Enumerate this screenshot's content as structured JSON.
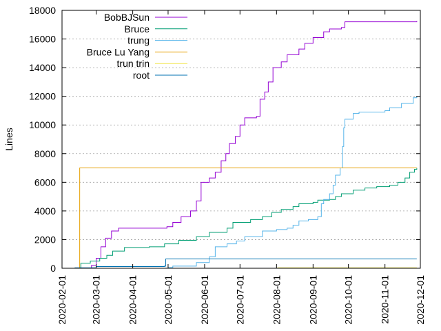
{
  "chart_data": {
    "type": "line",
    "title": "",
    "xlabel": "",
    "ylabel": "Lines",
    "ylim": [
      0,
      18000
    ],
    "xlim": [
      "2020-02-01",
      "2020-12-01"
    ],
    "y_ticks": [
      0,
      2000,
      4000,
      6000,
      8000,
      10000,
      12000,
      14000,
      16000,
      18000
    ],
    "x_ticks": [
      "2020-02-01",
      "2020-03-01",
      "2020-04-01",
      "2020-05-01",
      "2020-06-01",
      "2020-07-01",
      "2020-08-01",
      "2020-09-01",
      "2020-10-01",
      "2020-11-01",
      "2020-12-01"
    ],
    "grid": true,
    "legend_position": "top-left",
    "series": [
      {
        "name": "BobBJSun",
        "color": "#9400d3",
        "points": [
          [
            "2020-02-18",
            0
          ],
          [
            "2020-02-26",
            200
          ],
          [
            "2020-03-01",
            700
          ],
          [
            "2020-03-05",
            1500
          ],
          [
            "2020-03-09",
            2100
          ],
          [
            "2020-03-14",
            2600
          ],
          [
            "2020-03-20",
            2800
          ],
          [
            "2020-04-10",
            2800
          ],
          [
            "2020-04-30",
            2900
          ],
          [
            "2020-05-05",
            3200
          ],
          [
            "2020-05-12",
            3600
          ],
          [
            "2020-05-20",
            4000
          ],
          [
            "2020-05-25",
            4700
          ],
          [
            "2020-05-29",
            6000
          ],
          [
            "2020-06-05",
            6300
          ],
          [
            "2020-06-10",
            6700
          ],
          [
            "2020-06-15",
            7500
          ],
          [
            "2020-06-19",
            8000
          ],
          [
            "2020-06-22",
            8700
          ],
          [
            "2020-06-27",
            9200
          ],
          [
            "2020-07-01",
            10000
          ],
          [
            "2020-07-05",
            10500
          ],
          [
            "2020-07-15",
            10600
          ],
          [
            "2020-07-18",
            11800
          ],
          [
            "2020-07-22",
            12300
          ],
          [
            "2020-07-25",
            13000
          ],
          [
            "2020-07-29",
            14000
          ],
          [
            "2020-08-05",
            14400
          ],
          [
            "2020-08-10",
            14900
          ],
          [
            "2020-08-20",
            15300
          ],
          [
            "2020-08-25",
            15700
          ],
          [
            "2020-09-01",
            16100
          ],
          [
            "2020-09-10",
            16500
          ],
          [
            "2020-09-15",
            16700
          ],
          [
            "2020-09-25",
            16800
          ],
          [
            "2020-09-28",
            17200
          ],
          [
            "2020-11-28",
            17250
          ]
        ]
      },
      {
        "name": "Bruce",
        "color": "#009e73",
        "points": [
          [
            "2020-02-16",
            0
          ],
          [
            "2020-02-17",
            350
          ],
          [
            "2020-02-25",
            500
          ],
          [
            "2020-03-04",
            700
          ],
          [
            "2020-03-10",
            900
          ],
          [
            "2020-03-15",
            1200
          ],
          [
            "2020-03-25",
            1450
          ],
          [
            "2020-04-15",
            1500
          ],
          [
            "2020-04-28",
            1700
          ],
          [
            "2020-05-10",
            1950
          ],
          [
            "2020-05-25",
            2200
          ],
          [
            "2020-06-05",
            2500
          ],
          [
            "2020-06-20",
            2800
          ],
          [
            "2020-06-25",
            3200
          ],
          [
            "2020-07-10",
            3400
          ],
          [
            "2020-07-20",
            3600
          ],
          [
            "2020-07-28",
            3900
          ],
          [
            "2020-08-05",
            4100
          ],
          [
            "2020-08-15",
            4300
          ],
          [
            "2020-08-20",
            4500
          ],
          [
            "2020-09-01",
            4600
          ],
          [
            "2020-09-05",
            4750
          ],
          [
            "2020-09-15",
            4800
          ],
          [
            "2020-09-20",
            5000
          ],
          [
            "2020-09-25",
            5200
          ],
          [
            "2020-10-05",
            5450
          ],
          [
            "2020-10-15",
            5600
          ],
          [
            "2020-10-25",
            5700
          ],
          [
            "2020-11-05",
            5800
          ],
          [
            "2020-11-12",
            6000
          ],
          [
            "2020-11-18",
            6300
          ],
          [
            "2020-11-22",
            6700
          ],
          [
            "2020-11-26",
            6900
          ],
          [
            "2020-11-28",
            7000
          ]
        ]
      },
      {
        "name": "trung",
        "color": "#56b4e9",
        "points": [
          [
            "2020-02-15",
            0
          ],
          [
            "2020-05-01",
            50
          ],
          [
            "2020-05-05",
            150
          ],
          [
            "2020-05-25",
            400
          ],
          [
            "2020-06-05",
            800
          ],
          [
            "2020-06-10",
            1500
          ],
          [
            "2020-06-20",
            1700
          ],
          [
            "2020-06-28",
            1900
          ],
          [
            "2020-07-05",
            2200
          ],
          [
            "2020-07-20",
            2600
          ],
          [
            "2020-08-01",
            2700
          ],
          [
            "2020-08-10",
            2800
          ],
          [
            "2020-08-15",
            3000
          ],
          [
            "2020-08-20",
            3300
          ],
          [
            "2020-08-28",
            3400
          ],
          [
            "2020-09-05",
            3600
          ],
          [
            "2020-09-08",
            4500
          ],
          [
            "2020-09-10",
            4800
          ],
          [
            "2020-09-15",
            5200
          ],
          [
            "2020-09-18",
            5800
          ],
          [
            "2020-09-20",
            6500
          ],
          [
            "2020-09-24",
            7000
          ],
          [
            "2020-09-26",
            8500
          ],
          [
            "2020-09-27",
            9800
          ],
          [
            "2020-09-28",
            10400
          ],
          [
            "2020-10-05",
            10800
          ],
          [
            "2020-10-10",
            10900
          ],
          [
            "2020-11-01",
            11000
          ],
          [
            "2020-11-05",
            11200
          ],
          [
            "2020-11-15",
            11500
          ],
          [
            "2020-11-25",
            11900
          ],
          [
            "2020-11-28",
            12000
          ]
        ]
      },
      {
        "name": "Bruce Lu Yang",
        "color": "#e69f00",
        "points": [
          [
            "2020-02-15",
            0
          ],
          [
            "2020-02-16",
            7000
          ],
          [
            "2020-11-28",
            7000
          ]
        ]
      },
      {
        "name": "trun trin",
        "color": "#f0e442",
        "points": [
          [
            "2020-08-01",
            0
          ],
          [
            "2020-08-02",
            30
          ],
          [
            "2020-11-28",
            30
          ]
        ]
      },
      {
        "name": "root",
        "color": "#0072b2",
        "points": [
          [
            "2020-02-10",
            0
          ],
          [
            "2020-02-12",
            30
          ],
          [
            "2020-03-01",
            120
          ],
          [
            "2020-04-28",
            150
          ],
          [
            "2020-04-29",
            650
          ],
          [
            "2020-11-28",
            650
          ]
        ]
      }
    ]
  }
}
